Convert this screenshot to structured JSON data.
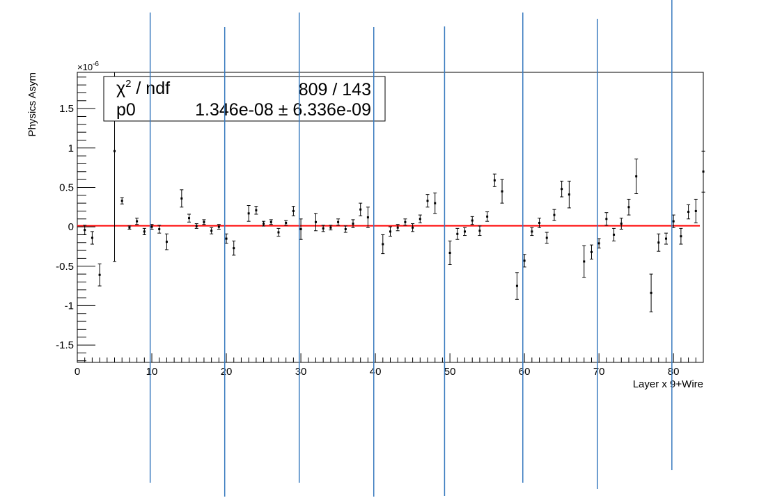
{
  "chart_data": {
    "type": "scatter",
    "title": "",
    "xlabel": "Layer x 9+Wire",
    "ylabel": "Physics Asym",
    "y_exponent_label": "×10",
    "y_exponent_power": "-6",
    "xlim": [
      0,
      84
    ],
    "ylim": [
      -1.72,
      1.96
    ],
    "x_ticks": [
      0,
      10,
      20,
      30,
      40,
      50,
      60,
      70,
      80
    ],
    "x_tick_labels": [
      "0",
      "10",
      "20",
      "30",
      "40",
      "50",
      "60",
      "70",
      "80"
    ],
    "y_ticks": [
      -1.5,
      -1,
      -0.5,
      0,
      0.5,
      1,
      1.5
    ],
    "y_tick_labels": [
      "-1.5",
      "-1",
      "-0.5",
      "0",
      "0.5",
      "1",
      "1.5"
    ],
    "fit": {
      "value": 0.013,
      "color": "#ff0000",
      "chi2_label": "χ",
      "chi2_power": "2",
      "chi2_suffix": " / ndf",
      "chi2_value": "809 / 143",
      "param_label": "p0",
      "param_value": "1.346e-08",
      "pm_symbol": "±",
      "param_error": "6.336e-09"
    },
    "points": [
      {
        "x": 1,
        "y": -0.04,
        "err": 0.06
      },
      {
        "x": 2,
        "y": -0.14,
        "err": 0.08
      },
      {
        "x": 3,
        "y": -0.61,
        "err": 0.14
      },
      {
        "x": 5,
        "y": 0.96,
        "err": 1.4
      },
      {
        "x": 6,
        "y": 0.33,
        "err": 0.04
      },
      {
        "x": 7,
        "y": -0.01,
        "err": 0.02
      },
      {
        "x": 8,
        "y": 0.07,
        "err": 0.04
      },
      {
        "x": 9,
        "y": -0.06,
        "err": 0.04
      },
      {
        "x": 10,
        "y": 0.0,
        "err": 0.03
      },
      {
        "x": 11,
        "y": -0.03,
        "err": 0.05
      },
      {
        "x": 12,
        "y": -0.19,
        "err": 0.1
      },
      {
        "x": 14,
        "y": 0.36,
        "err": 0.11
      },
      {
        "x": 15,
        "y": 0.11,
        "err": 0.05
      },
      {
        "x": 16,
        "y": 0.01,
        "err": 0.03
      },
      {
        "x": 17,
        "y": 0.06,
        "err": 0.03
      },
      {
        "x": 18,
        "y": -0.05,
        "err": 0.04
      },
      {
        "x": 19,
        "y": 0.0,
        "err": 0.03
      },
      {
        "x": 20,
        "y": -0.15,
        "err": 0.06
      },
      {
        "x": 21,
        "y": -0.27,
        "err": 0.09
      },
      {
        "x": 23,
        "y": 0.17,
        "err": 0.1
      },
      {
        "x": 24,
        "y": 0.21,
        "err": 0.05
      },
      {
        "x": 25,
        "y": 0.04,
        "err": 0.03
      },
      {
        "x": 26,
        "y": 0.06,
        "err": 0.03
      },
      {
        "x": 27,
        "y": -0.07,
        "err": 0.05
      },
      {
        "x": 28,
        "y": 0.05,
        "err": 0.03
      },
      {
        "x": 29,
        "y": 0.2,
        "err": 0.06
      },
      {
        "x": 30,
        "y": -0.03,
        "err": 0.13
      },
      {
        "x": 32,
        "y": 0.06,
        "err": 0.11
      },
      {
        "x": 33,
        "y": -0.02,
        "err": 0.04
      },
      {
        "x": 34,
        "y": -0.01,
        "err": 0.03
      },
      {
        "x": 35,
        "y": 0.06,
        "err": 0.04
      },
      {
        "x": 36,
        "y": -0.03,
        "err": 0.04
      },
      {
        "x": 37,
        "y": 0.04,
        "err": 0.05
      },
      {
        "x": 38,
        "y": 0.22,
        "err": 0.08
      },
      {
        "x": 39,
        "y": 0.12,
        "err": 0.13
      },
      {
        "x": 41,
        "y": -0.22,
        "err": 0.12
      },
      {
        "x": 42,
        "y": -0.06,
        "err": 0.06
      },
      {
        "x": 43,
        "y": -0.01,
        "err": 0.04
      },
      {
        "x": 44,
        "y": 0.06,
        "err": 0.04
      },
      {
        "x": 45,
        "y": -0.01,
        "err": 0.05
      },
      {
        "x": 46,
        "y": 0.1,
        "err": 0.05
      },
      {
        "x": 47,
        "y": 0.33,
        "err": 0.08
      },
      {
        "x": 48,
        "y": 0.3,
        "err": 0.13
      },
      {
        "x": 50,
        "y": -0.33,
        "err": 0.15
      },
      {
        "x": 51,
        "y": -0.09,
        "err": 0.07
      },
      {
        "x": 52,
        "y": -0.06,
        "err": 0.05
      },
      {
        "x": 53,
        "y": 0.08,
        "err": 0.05
      },
      {
        "x": 54,
        "y": -0.05,
        "err": 0.06
      },
      {
        "x": 55,
        "y": 0.13,
        "err": 0.06
      },
      {
        "x": 56,
        "y": 0.59,
        "err": 0.08
      },
      {
        "x": 57,
        "y": 0.45,
        "err": 0.15
      },
      {
        "x": 59,
        "y": -0.75,
        "err": 0.17
      },
      {
        "x": 60,
        "y": -0.43,
        "err": 0.08
      },
      {
        "x": 61,
        "y": -0.06,
        "err": 0.05
      },
      {
        "x": 62,
        "y": 0.05,
        "err": 0.06
      },
      {
        "x": 63,
        "y": -0.14,
        "err": 0.07
      },
      {
        "x": 64,
        "y": 0.15,
        "err": 0.07
      },
      {
        "x": 65,
        "y": 0.48,
        "err": 0.1
      },
      {
        "x": 66,
        "y": 0.41,
        "err": 0.17
      },
      {
        "x": 68,
        "y": -0.44,
        "err": 0.2
      },
      {
        "x": 69,
        "y": -0.32,
        "err": 0.09
      },
      {
        "x": 70,
        "y": -0.21,
        "err": 0.06
      },
      {
        "x": 71,
        "y": 0.1,
        "err": 0.08
      },
      {
        "x": 72,
        "y": -0.1,
        "err": 0.08
      },
      {
        "x": 73,
        "y": 0.04,
        "err": 0.07
      },
      {
        "x": 74,
        "y": 0.25,
        "err": 0.1
      },
      {
        "x": 75,
        "y": 0.64,
        "err": 0.22
      },
      {
        "x": 77,
        "y": -0.84,
        "err": 0.24
      },
      {
        "x": 78,
        "y": -0.2,
        "err": 0.11
      },
      {
        "x": 79,
        "y": -0.15,
        "err": 0.07
      },
      {
        "x": 80,
        "y": 0.07,
        "err": 0.08
      },
      {
        "x": 81,
        "y": -0.12,
        "err": 0.1
      },
      {
        "x": 82,
        "y": 0.19,
        "err": 0.09
      },
      {
        "x": 83,
        "y": 0.2,
        "err": 0.15
      },
      {
        "x": 84,
        "y": 0.7,
        "err": 0.26
      }
    ],
    "markers": {
      "color": "#3a7bbf",
      "x": [
        9.5,
        19.5,
        29.5,
        39.5,
        49,
        59.5,
        69.5,
        79.5
      ]
    },
    "grid": false,
    "legend": "none"
  }
}
